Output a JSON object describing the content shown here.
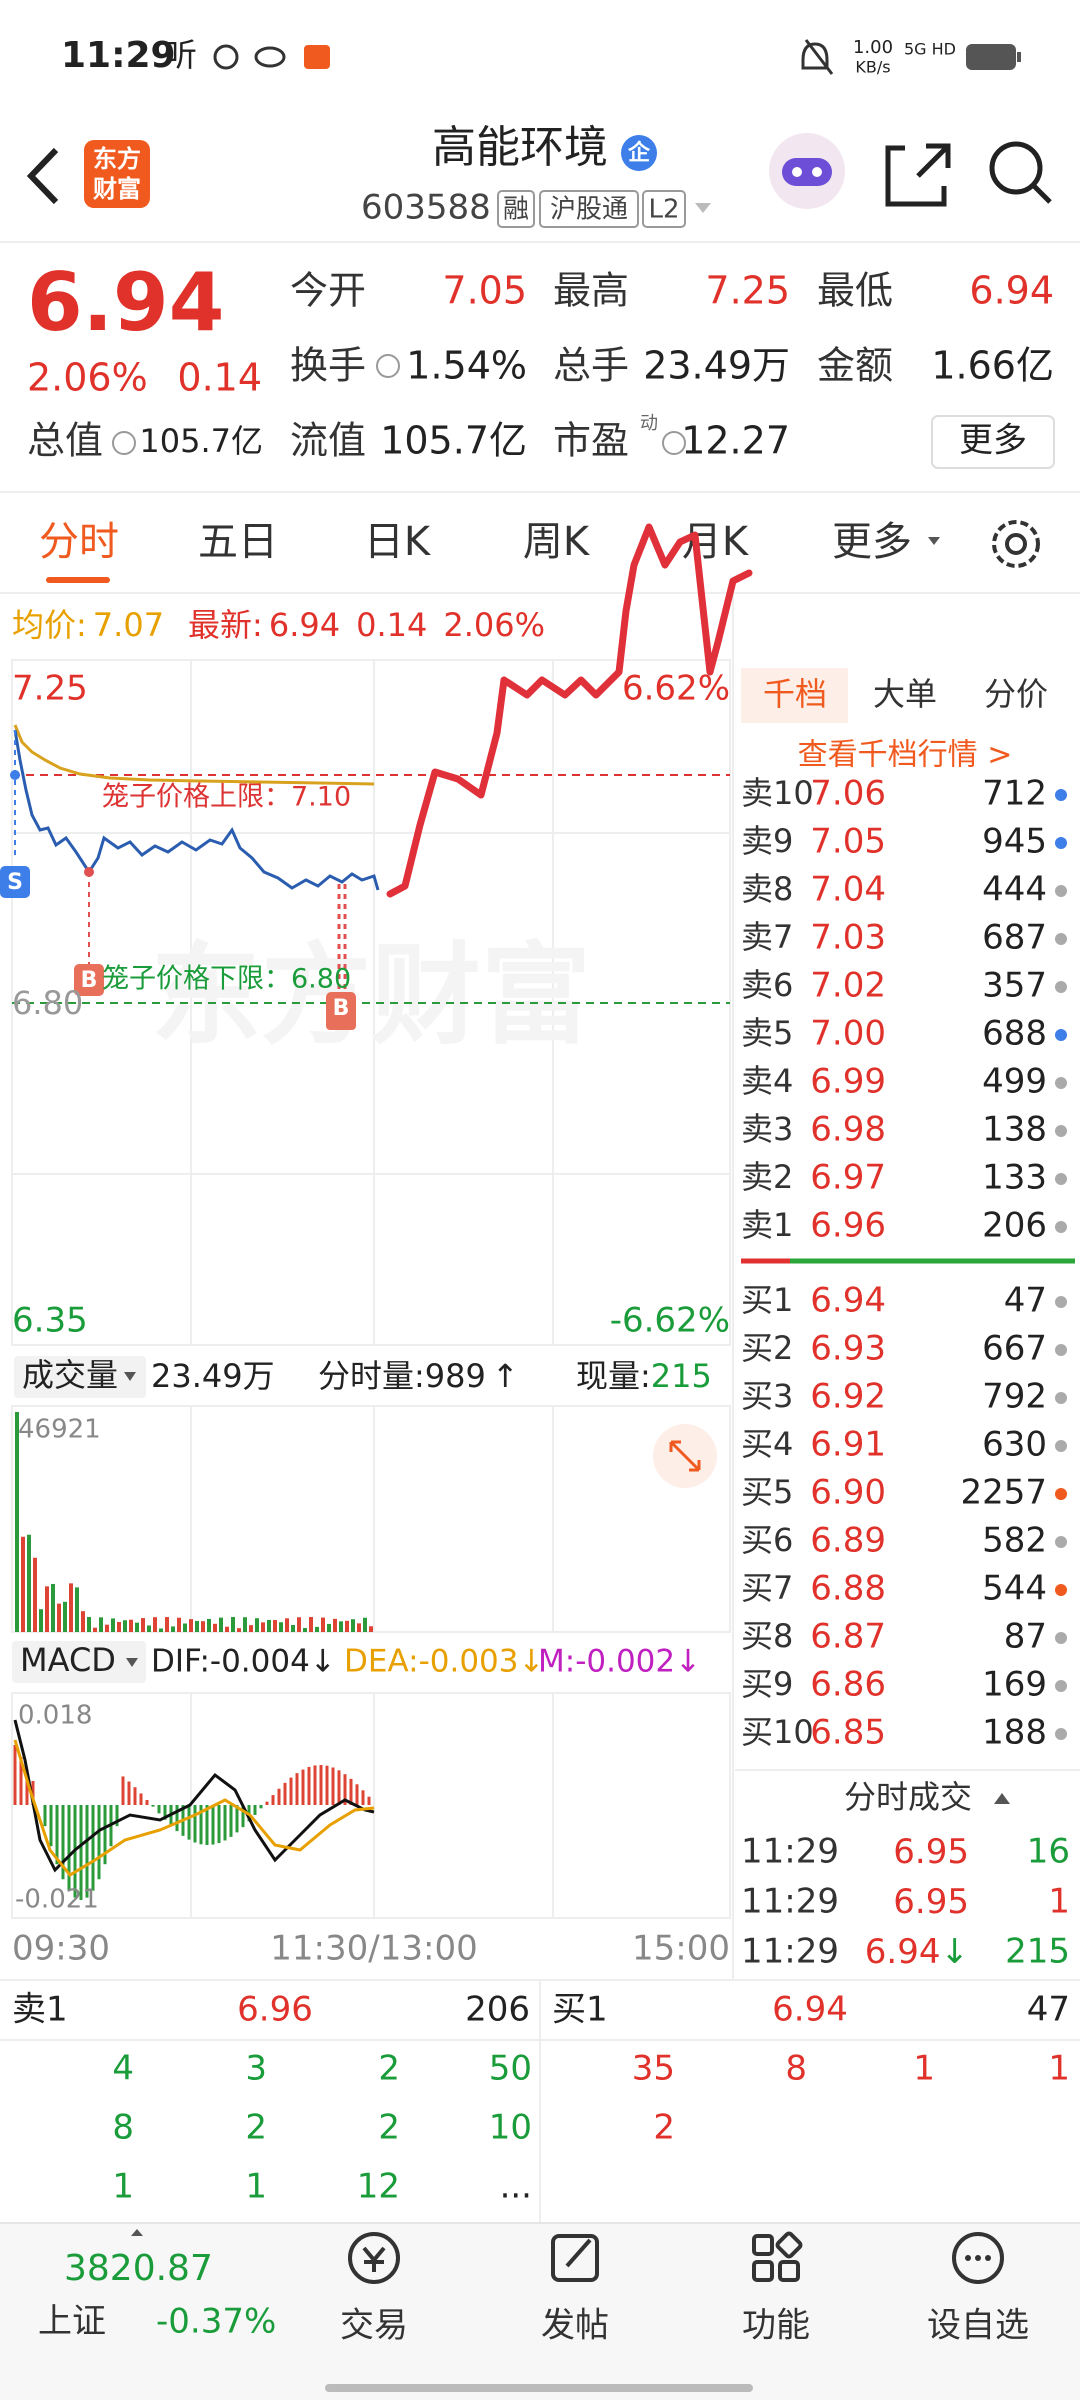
{
  "status_bar": {
    "time": "11:29",
    "app_icon": "听",
    "net_speed": "1.00",
    "net_unit": "KB/s",
    "network": "5G HD"
  },
  "header": {
    "logo": [
      "东方",
      "财富"
    ],
    "title": "高能环境",
    "badge": "企",
    "code": "603588",
    "tags": [
      "融",
      "沪股通",
      "L2"
    ]
  },
  "quote": {
    "price": "6.94",
    "change_pct": "2.06%",
    "change": "0.14",
    "stats": [
      {
        "label": "今开",
        "value": "7.05"
      },
      {
        "label": "最高",
        "value": "7.25"
      },
      {
        "label": "最低",
        "value": "6.94"
      },
      {
        "label": "换手",
        "value": "1.54%"
      },
      {
        "label": "总手",
        "value": "23.49万"
      },
      {
        "label": "金额",
        "value": "1.66亿"
      },
      {
        "label": "流值",
        "value": "105.7亿"
      },
      {
        "label": "市盈",
        "value": "12.27"
      }
    ],
    "total_value": {
      "label": "总值",
      "value": "105.7亿"
    },
    "pe_note": "动",
    "more": "更多"
  },
  "tabs": [
    "分时",
    "五日",
    "日K",
    "周K",
    "月K",
    "更多"
  ],
  "chart": {
    "avg_label": "均价:",
    "avg": "7.07",
    "latest_label": "最新:",
    "latest": "6.94",
    "change": "0.14",
    "change_pct": "2.06%",
    "high": "7.25",
    "high_pct": "6.62%",
    "mid": "6.80",
    "low": "6.35",
    "low_pct": "-6.62%",
    "upper_limit": "笼子价格上限：7.10",
    "lower_limit": "笼子价格下限：6.80",
    "markers": [
      "S",
      "B",
      "B"
    ],
    "watermark": "东方财富",
    "volume": {
      "label": "成交量",
      "total": "23.49万",
      "minute_label": "分时量:",
      "minute_vol": "989",
      "arrow": "↑",
      "current_label": "现量:",
      "current": "215",
      "max": "46921"
    },
    "macd": {
      "label": "MACD",
      "dif": "DIF:-0.004↓",
      "dea": "DEA:-0.003↓",
      "m": "M:-0.002↓",
      "max": "0.018",
      "min": "-0.021"
    },
    "time_axis": [
      "09:30",
      "11:30/13:00",
      "15:00"
    ]
  },
  "order_book": {
    "tabs": [
      "千档",
      "大单",
      "分价"
    ],
    "link": "查看千档行情 >",
    "sells": [
      {
        "label": "卖10",
        "price": "7.06",
        "volume": "712"
      },
      {
        "label": "卖9",
        "price": "7.05",
        "volume": "945"
      },
      {
        "label": "卖8",
        "price": "7.04",
        "volume": "444"
      },
      {
        "label": "卖7",
        "price": "7.03",
        "volume": "687"
      },
      {
        "label": "卖6",
        "price": "7.02",
        "volume": "357"
      },
      {
        "label": "卖5",
        "price": "7.00",
        "volume": "688"
      },
      {
        "label": "卖4",
        "price": "6.99",
        "volume": "499"
      },
      {
        "label": "卖3",
        "price": "6.98",
        "volume": "138"
      },
      {
        "label": "卖2",
        "price": "6.97",
        "volume": "133"
      },
      {
        "label": "卖1",
        "price": "6.96",
        "volume": "206"
      }
    ],
    "buys": [
      {
        "label": "买1",
        "price": "6.94",
        "volume": "47"
      },
      {
        "label": "买2",
        "price": "6.93",
        "volume": "667"
      },
      {
        "label": "买3",
        "price": "6.92",
        "volume": "792"
      },
      {
        "label": "买4",
        "price": "6.91",
        "volume": "630"
      },
      {
        "label": "买5",
        "price": "6.90",
        "volume": "2257"
      },
      {
        "label": "买6",
        "price": "6.89",
        "volume": "582"
      },
      {
        "label": "买7",
        "price": "6.88",
        "volume": "544"
      },
      {
        "label": "买8",
        "price": "6.87",
        "volume": "87"
      },
      {
        "label": "买9",
        "price": "6.86",
        "volume": "169"
      },
      {
        "label": "买10",
        "price": "6.85",
        "volume": "188"
      }
    ]
  },
  "trades": {
    "title": "分时成交",
    "rows": [
      {
        "time": "11:29",
        "price": "6.95",
        "volume": "16"
      },
      {
        "time": "11:29",
        "price": "6.95",
        "volume": "1"
      },
      {
        "time": "11:29",
        "price": "6.94",
        "arrow": "↓",
        "volume": "215"
      }
    ]
  },
  "bottom_book": {
    "sell": {
      "label": "卖1",
      "price": "6.96",
      "volume": "206"
    },
    "buy": {
      "label": "买1",
      "price": "6.94",
      "volume": "47"
    },
    "sell_queue": [
      [
        "4",
        "3",
        "2",
        "50"
      ],
      [
        "8",
        "2",
        "2",
        "10"
      ],
      [
        "1",
        "1",
        "12",
        "..."
      ]
    ],
    "buy_queue": [
      [
        "35",
        "8",
        "1",
        "1"
      ],
      [
        "2"
      ]
    ]
  },
  "footer": {
    "index_value": "3820.87",
    "index_name": "上证",
    "index_change": "-0.37%",
    "nav": [
      "交易",
      "发帖",
      "功能",
      "设自选"
    ]
  }
}
